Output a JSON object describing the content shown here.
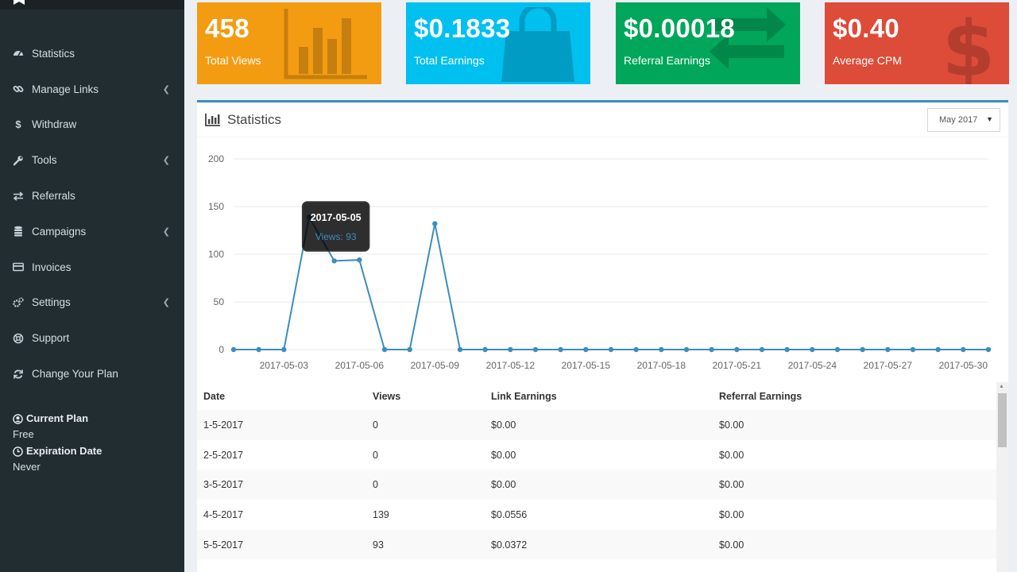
{
  "sidebar": {
    "items": [
      {
        "label": "Statistics",
        "icon": "dashboard-icon",
        "has_submenu": false
      },
      {
        "label": "Manage Links",
        "icon": "link-icon",
        "has_submenu": true
      },
      {
        "label": "Withdraw",
        "icon": "dollar-icon",
        "has_submenu": false
      },
      {
        "label": "Tools",
        "icon": "wrench-icon",
        "has_submenu": true
      },
      {
        "label": "Referrals",
        "icon": "exchange-icon",
        "has_submenu": false
      },
      {
        "label": "Campaigns",
        "icon": "database-icon",
        "has_submenu": true
      },
      {
        "label": "Invoices",
        "icon": "credit-card-icon",
        "has_submenu": false
      },
      {
        "label": "Settings",
        "icon": "gears-icon",
        "has_submenu": true
      },
      {
        "label": "Support",
        "icon": "life-ring-icon",
        "has_submenu": false
      },
      {
        "label": "Change Your Plan",
        "icon": "refresh-icon",
        "has_submenu": false
      }
    ],
    "plan": {
      "current_label": "Current Plan",
      "current_value": "Free",
      "expiration_label": "Expiration Date",
      "expiration_value": "Never"
    }
  },
  "stats": {
    "views": {
      "value": "458",
      "label": "Total Views",
      "color": "#f39c12"
    },
    "earnings": {
      "value": "$0.1833",
      "label": "Total Earnings",
      "color": "#00c0ef"
    },
    "referral": {
      "value": "$0.00018",
      "label": "Referral Earnings",
      "color": "#00a65a"
    },
    "cpm": {
      "value": "$0.40",
      "label": "Average CPM",
      "color": "#dd4b39"
    }
  },
  "panel": {
    "title": "Statistics",
    "month_selected": "May 2017"
  },
  "chart_data": {
    "type": "line",
    "x": [
      "2017-05-01",
      "2017-05-02",
      "2017-05-03",
      "2017-05-04",
      "2017-05-05",
      "2017-05-06",
      "2017-05-07",
      "2017-05-08",
      "2017-05-09",
      "2017-05-10",
      "2017-05-11",
      "2017-05-12",
      "2017-05-13",
      "2017-05-14",
      "2017-05-15",
      "2017-05-16",
      "2017-05-17",
      "2017-05-18",
      "2017-05-19",
      "2017-05-20",
      "2017-05-21",
      "2017-05-22",
      "2017-05-23",
      "2017-05-24",
      "2017-05-25",
      "2017-05-26",
      "2017-05-27",
      "2017-05-28",
      "2017-05-29",
      "2017-05-30",
      "2017-05-31"
    ],
    "series": [
      {
        "values": [
          0,
          0,
          0,
          139,
          93,
          94,
          0,
          0,
          132,
          0,
          0,
          0,
          0,
          0,
          0,
          0,
          0,
          0,
          0,
          0,
          0,
          0,
          0,
          0,
          0,
          0,
          0,
          0,
          0,
          0,
          0
        ]
      }
    ],
    "x_tick_labels": [
      "2017-05-03",
      "2017-05-06",
      "2017-05-09",
      "2017-05-12",
      "2017-05-15",
      "2017-05-18",
      "2017-05-21",
      "2017-05-24",
      "2017-05-27",
      "2017-05-30"
    ],
    "y_ticks": [
      0,
      50,
      100,
      150,
      200
    ],
    "ylim": [
      0,
      200
    ],
    "grid": true,
    "line_color": "#3c8dbc",
    "tooltip": {
      "date": "2017-05-05",
      "text": "Views: 93"
    }
  },
  "table": {
    "headers": [
      "Date",
      "Views",
      "Link Earnings",
      "Referral Earnings"
    ],
    "rows": [
      [
        "1-5-2017",
        "0",
        "$0.00",
        "$0.00"
      ],
      [
        "2-5-2017",
        "0",
        "$0.00",
        "$0.00"
      ],
      [
        "3-5-2017",
        "0",
        "$0.00",
        "$0.00"
      ],
      [
        "4-5-2017",
        "139",
        "$0.0556",
        "$0.00"
      ],
      [
        "5-5-2017",
        "93",
        "$0.0372",
        "$0.00"
      ]
    ]
  }
}
